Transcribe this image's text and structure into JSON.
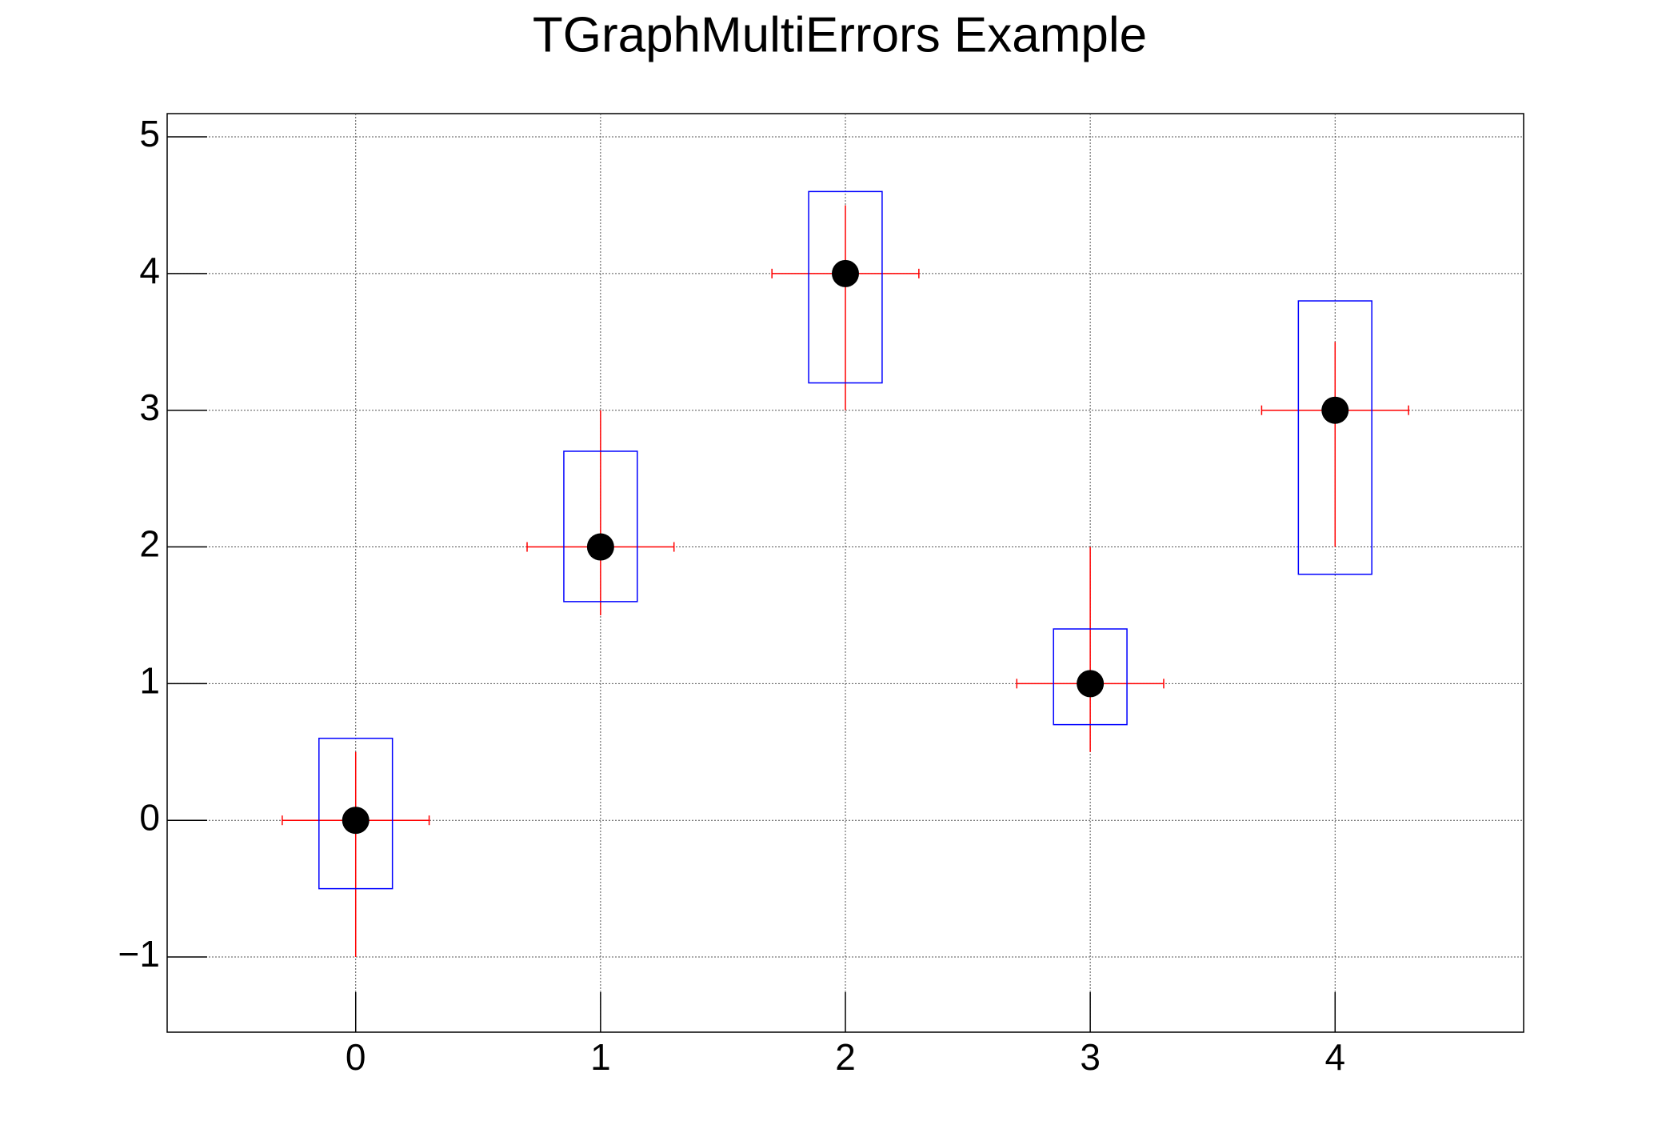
{
  "chart_data": {
    "type": "errorbar",
    "title": "TGraphMultiErrors Example",
    "x": [
      0,
      1,
      2,
      3,
      4
    ],
    "values": [
      0,
      2,
      4,
      1,
      3
    ],
    "marker_color": "#000000",
    "errors": [
      {
        "style": "bars",
        "color": "#ff0000",
        "x_err": [
          0.3,
          0.3,
          0.3,
          0.3,
          0.3
        ],
        "y_low": [
          1,
          0.5,
          1,
          0.5,
          1
        ],
        "y_high": [
          0.5,
          1,
          0.5,
          1,
          0.5
        ]
      },
      {
        "style": "boxes",
        "color": "#0000ff",
        "x_err": [
          0.15,
          0.15,
          0.15,
          0.15,
          0.15
        ],
        "y_low": [
          0.5,
          0.4,
          0.8,
          0.3,
          1.2
        ],
        "y_high": [
          0.6,
          0.7,
          0.6,
          0.4,
          0.8
        ]
      }
    ],
    "xlim": [
      -0.77,
      4.77
    ],
    "ylim": [
      -1.55,
      5.17
    ],
    "xticks": [
      0,
      1,
      2,
      3,
      4
    ],
    "yticks": [
      {
        "value": -1,
        "label": "−1"
      },
      0,
      1,
      2,
      3,
      4,
      5
    ],
    "grid": true
  }
}
